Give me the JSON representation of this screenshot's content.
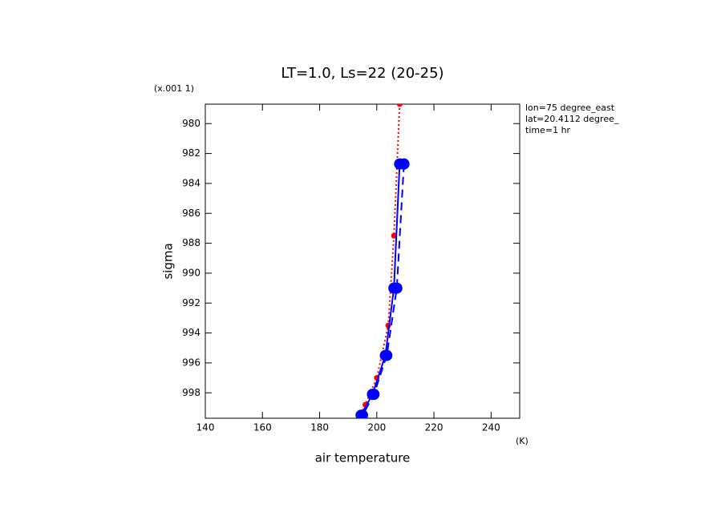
{
  "chart_data": {
    "type": "line",
    "title": "LT=1.0, Ls=22 (20-25)",
    "scale_label": "(x.001 1)",
    "x_label": "air temperature",
    "x_unit": "(K)",
    "y_label": "sigma",
    "annotations": [
      "lon=75 degree_east",
      "lat=20.4112 degree_",
      "time=1 hr"
    ],
    "xlim": [
      140,
      250
    ],
    "xticks": [
      140,
      160,
      180,
      200,
      220,
      240
    ],
    "ylim": [
      999.7,
      978.7
    ],
    "yticks": [
      980,
      982,
      984,
      986,
      988,
      990,
      992,
      994,
      996,
      998
    ],
    "series": [
      {
        "color": "#ff0000",
        "dash": "2,3",
        "marker": 3.5,
        "y": [
          978.7,
          987.5,
          993.5,
          997,
          998.8,
          999.7
        ],
        "values": [
          208,
          206,
          204,
          200,
          196,
          194
        ]
      },
      {
        "color": "#0000ff",
        "dash": "none",
        "marker": 7,
        "y": [
          982.7,
          991,
          995.5,
          998.1,
          999.5
        ],
        "values": [
          208,
          206,
          203,
          198.5,
          194.5
        ]
      },
      {
        "color": "#0000ff",
        "dash": "10,6",
        "marker": 7,
        "y": [
          982.7,
          991,
          995.5,
          998.1,
          999.5
        ],
        "values": [
          209.5,
          207,
          203.5,
          199,
          195
        ]
      }
    ]
  }
}
